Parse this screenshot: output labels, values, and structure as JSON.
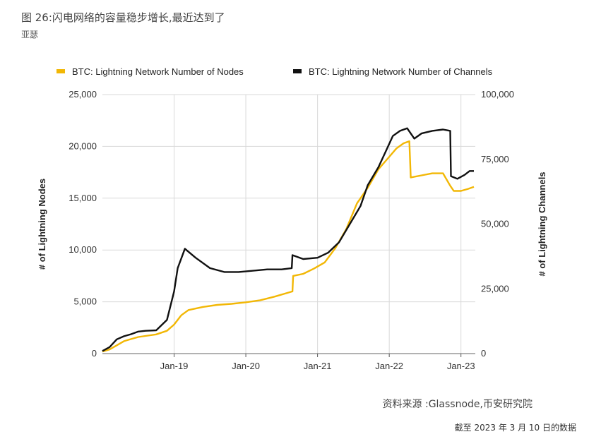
{
  "header": {
    "title": "图 26:闪电网络的容量稳步增长,最近达到了",
    "author": "亚瑟"
  },
  "footer": {
    "source": "资料来源 :Glassnode,币安研究院",
    "date_note": "截至 2023 年 3 月 10 日的数据"
  },
  "colors": {
    "nodes": "#F2B705",
    "channels": "#111111",
    "grid": "#d9d9d9"
  },
  "chart_data": {
    "type": "line",
    "x_ticks": [
      "Jan-19",
      "Jan-20",
      "Jan-21",
      "Jan-22",
      "Jan-23"
    ],
    "x_tick_years": [
      2019,
      2020,
      2021,
      2022,
      2023
    ],
    "xlim": [
      2018.0,
      2023.2
    ],
    "y_left": {
      "label": "# of Lightning Nodes",
      "lim": [
        0,
        25000
      ],
      "ticks": [
        0,
        5000,
        10000,
        15000,
        20000,
        25000
      ],
      "tick_labels": [
        "0",
        "5,000",
        "10,000",
        "15,000",
        "20,000",
        "25,000"
      ]
    },
    "y_right": {
      "label": "# of Lightning Channels",
      "lim": [
        0,
        100000
      ],
      "ticks": [
        0,
        25000,
        50000,
        75000,
        100000
      ],
      "tick_labels": [
        "0",
        "25,000",
        "50,000",
        "75,000",
        "100,000"
      ]
    },
    "legend_position": "top",
    "series": [
      {
        "name": "BTC: Lightning Network Number of Nodes",
        "axis": "left",
        "points": [
          [
            2018.0,
            200
          ],
          [
            2018.1,
            400
          ],
          [
            2018.2,
            800
          ],
          [
            2018.3,
            1200
          ],
          [
            2018.4,
            1400
          ],
          [
            2018.5,
            1600
          ],
          [
            2018.6,
            1700
          ],
          [
            2018.75,
            1850
          ],
          [
            2018.9,
            2200
          ],
          [
            2019.0,
            2800
          ],
          [
            2019.1,
            3700
          ],
          [
            2019.2,
            4200
          ],
          [
            2019.4,
            4500
          ],
          [
            2019.6,
            4700
          ],
          [
            2019.8,
            4800
          ],
          [
            2020.0,
            4950
          ],
          [
            2020.2,
            5150
          ],
          [
            2020.4,
            5500
          ],
          [
            2020.6,
            5900
          ],
          [
            2020.65,
            6000
          ],
          [
            2020.66,
            7500
          ],
          [
            2020.8,
            7700
          ],
          [
            2020.95,
            8200
          ],
          [
            2021.1,
            8800
          ],
          [
            2021.25,
            10200
          ],
          [
            2021.4,
            12000
          ],
          [
            2021.55,
            14500
          ],
          [
            2021.7,
            16000
          ],
          [
            2021.85,
            17800
          ],
          [
            2021.95,
            18600
          ],
          [
            2022.0,
            19000
          ],
          [
            2022.1,
            19800
          ],
          [
            2022.2,
            20300
          ],
          [
            2022.28,
            20500
          ],
          [
            2022.3,
            17000
          ],
          [
            2022.45,
            17200
          ],
          [
            2022.6,
            17400
          ],
          [
            2022.75,
            17400
          ],
          [
            2022.85,
            16200
          ],
          [
            2022.9,
            15700
          ],
          [
            2023.0,
            15700
          ],
          [
            2023.1,
            15900
          ],
          [
            2023.18,
            16100
          ]
        ]
      },
      {
        "name": "BTC: Lightning Network Number of Channels",
        "axis": "right",
        "points": [
          [
            2018.0,
            1000
          ],
          [
            2018.1,
            2500
          ],
          [
            2018.2,
            5500
          ],
          [
            2018.3,
            6700
          ],
          [
            2018.4,
            7500
          ],
          [
            2018.5,
            8500
          ],
          [
            2018.6,
            8800
          ],
          [
            2018.75,
            9000
          ],
          [
            2018.9,
            13000
          ],
          [
            2019.0,
            24000
          ],
          [
            2019.05,
            33000
          ],
          [
            2019.15,
            40500
          ],
          [
            2019.3,
            37000
          ],
          [
            2019.5,
            33000
          ],
          [
            2019.7,
            31500
          ],
          [
            2019.9,
            31500
          ],
          [
            2020.1,
            32000
          ],
          [
            2020.3,
            32500
          ],
          [
            2020.5,
            32500
          ],
          [
            2020.64,
            33000
          ],
          [
            2020.65,
            38000
          ],
          [
            2020.8,
            36500
          ],
          [
            2021.0,
            37000
          ],
          [
            2021.15,
            39000
          ],
          [
            2021.3,
            43000
          ],
          [
            2021.45,
            50000
          ],
          [
            2021.6,
            57000
          ],
          [
            2021.7,
            65000
          ],
          [
            2021.85,
            72000
          ],
          [
            2021.95,
            78000
          ],
          [
            2022.05,
            84000
          ],
          [
            2022.15,
            86000
          ],
          [
            2022.25,
            87000
          ],
          [
            2022.35,
            83000
          ],
          [
            2022.45,
            85000
          ],
          [
            2022.6,
            86000
          ],
          [
            2022.75,
            86500
          ],
          [
            2022.85,
            86000
          ],
          [
            2022.86,
            68500
          ],
          [
            2022.95,
            67500
          ],
          [
            2023.05,
            69000
          ],
          [
            2023.12,
            70500
          ],
          [
            2023.18,
            70500
          ]
        ]
      }
    ]
  }
}
